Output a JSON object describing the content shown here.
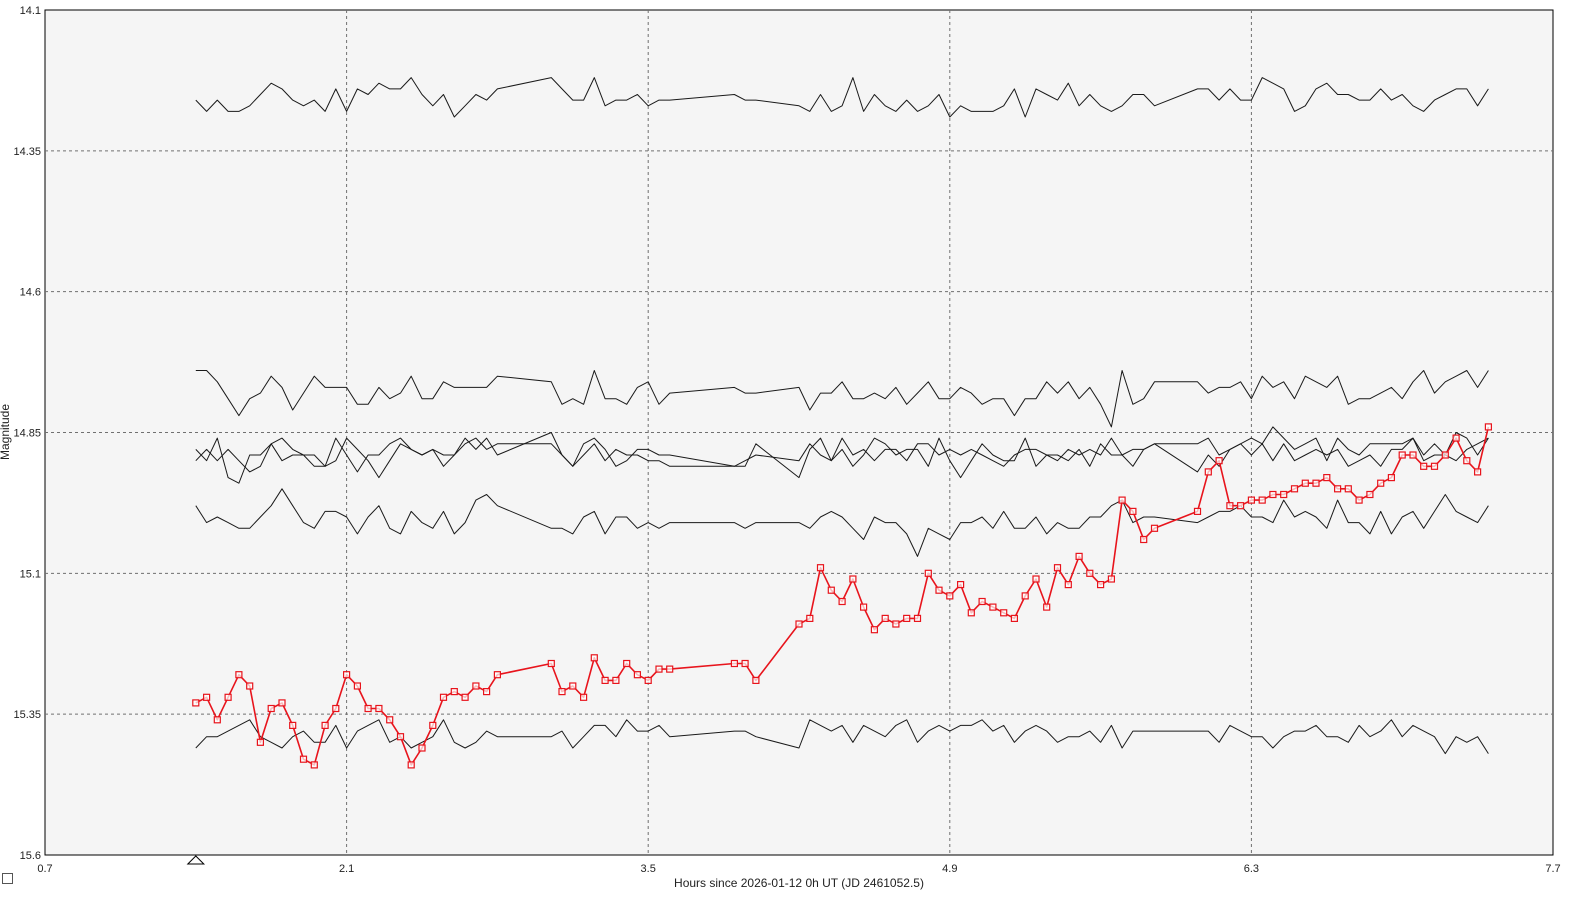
{
  "chart_data": {
    "type": "line",
    "title": "",
    "xlabel": "Hours since 2026-01-12 0h UT (JD 2461052.5)",
    "ylabel": "Magnitude",
    "xlim": [
      0.7,
      7.7
    ],
    "ylim": [
      14.1,
      15.6
    ],
    "y_inverted": true,
    "grid": true,
    "x_ticks": [
      "0.7",
      "2.1",
      "3.5",
      "4.9",
      "6.3",
      "7.7"
    ],
    "y_ticks": [
      "14.1",
      "14.35",
      "14.6",
      "14.85",
      "15.1",
      "15.35",
      "15.6"
    ],
    "x_marker": 1.4,
    "target_color": "#e8141c",
    "comp_color": "#1a1a1a",
    "x": [
      1.4,
      1.45,
      1.5,
      1.55,
      1.6,
      1.65,
      1.7,
      1.75,
      1.8,
      1.85,
      1.9,
      1.95,
      2.0,
      2.05,
      2.1,
      2.15,
      2.2,
      2.25,
      2.3,
      2.35,
      2.4,
      2.45,
      2.5,
      2.55,
      2.6,
      2.65,
      2.7,
      2.75,
      2.8,
      3.05,
      3.1,
      3.15,
      3.2,
      3.25,
      3.3,
      3.35,
      3.4,
      3.45,
      3.5,
      3.55,
      3.6,
      3.9,
      3.95,
      4.0,
      4.2,
      4.25,
      4.3,
      4.35,
      4.4,
      4.45,
      4.5,
      4.55,
      4.6,
      4.65,
      4.7,
      4.75,
      4.8,
      4.85,
      4.9,
      4.95,
      5.0,
      5.05,
      5.1,
      5.15,
      5.2,
      5.25,
      5.3,
      5.35,
      5.4,
      5.45,
      5.5,
      5.55,
      5.6,
      5.65,
      5.7,
      5.75,
      5.8,
      5.85,
      6.05,
      6.1,
      6.15,
      6.2,
      6.25,
      6.3,
      6.35,
      6.4,
      6.45,
      6.5,
      6.55,
      6.6,
      6.65,
      6.7,
      6.75,
      6.8,
      6.85,
      6.9,
      6.95,
      7.0,
      7.05,
      7.1,
      7.15,
      7.2,
      7.25,
      7.3,
      7.35,
      7.4
    ],
    "series": [
      {
        "role": "target",
        "y": [
          15.33,
          15.32,
          15.36,
          15.32,
          15.28,
          15.3,
          15.4,
          15.34,
          15.33,
          15.37,
          15.43,
          15.44,
          15.37,
          15.34,
          15.28,
          15.3,
          15.34,
          15.34,
          15.36,
          15.39,
          15.44,
          15.41,
          15.37,
          15.32,
          15.31,
          15.32,
          15.3,
          15.31,
          15.28,
          15.26,
          15.31,
          15.3,
          15.32,
          15.25,
          15.29,
          15.29,
          15.26,
          15.28,
          15.29,
          15.27,
          15.27,
          15.26,
          15.26,
          15.29,
          15.19,
          15.18,
          15.09,
          15.13,
          15.15,
          15.11,
          15.16,
          15.2,
          15.18,
          15.19,
          15.18,
          15.18,
          15.1,
          15.13,
          15.14,
          15.12,
          15.17,
          15.15,
          15.16,
          15.17,
          15.18,
          15.14,
          15.11,
          15.16,
          15.09,
          15.12,
          15.07,
          15.1,
          15.12,
          15.11,
          14.97,
          14.99,
          15.04,
          15.02,
          14.99,
          14.92,
          14.9,
          14.98,
          14.98,
          14.97,
          14.97,
          14.96,
          14.96,
          14.95,
          14.94,
          14.94,
          14.93,
          14.95,
          14.95,
          14.97,
          14.96,
          14.94,
          14.93,
          14.89,
          14.89,
          14.91,
          14.91,
          14.89,
          14.86,
          14.9,
          14.92,
          14.84
        ]
      },
      {
        "role": "comparison",
        "y": [
          14.26,
          14.28,
          14.26,
          14.28,
          14.28,
          14.27,
          14.25,
          14.23,
          14.24,
          14.26,
          14.27,
          14.26,
          14.28,
          14.24,
          14.28,
          14.24,
          14.25,
          14.23,
          14.24,
          14.24,
          14.22,
          14.25,
          14.27,
          14.25,
          14.29,
          14.27,
          14.25,
          14.26,
          14.24,
          14.22,
          14.24,
          14.26,
          14.26,
          14.22,
          14.27,
          14.26,
          14.26,
          14.25,
          14.27,
          14.26,
          14.26,
          14.25,
          14.26,
          14.26,
          14.27,
          14.28,
          14.25,
          14.28,
          14.27,
          14.22,
          14.28,
          14.25,
          14.27,
          14.28,
          14.26,
          14.28,
          14.27,
          14.25,
          14.29,
          14.27,
          14.28,
          14.28,
          14.28,
          14.27,
          14.24,
          14.29,
          14.24,
          14.25,
          14.26,
          14.23,
          14.27,
          14.25,
          14.27,
          14.28,
          14.27,
          14.25,
          14.25,
          14.27,
          14.24,
          14.24,
          14.26,
          14.24,
          14.26,
          14.26,
          14.22,
          14.23,
          14.24,
          14.28,
          14.27,
          14.24,
          14.23,
          14.25,
          14.25,
          14.26,
          14.26,
          14.24,
          14.26,
          14.25,
          14.27,
          14.28,
          14.26,
          14.25,
          14.24,
          14.24,
          14.27,
          14.24
        ]
      },
      {
        "role": "comparison",
        "y": [
          14.74,
          14.74,
          14.76,
          14.79,
          14.82,
          14.79,
          14.78,
          14.75,
          14.77,
          14.81,
          14.78,
          14.75,
          14.77,
          14.77,
          14.77,
          14.8,
          14.8,
          14.77,
          14.79,
          14.78,
          14.75,
          14.79,
          14.79,
          14.76,
          14.77,
          14.77,
          14.77,
          14.77,
          14.75,
          14.76,
          14.8,
          14.79,
          14.8,
          14.74,
          14.79,
          14.79,
          14.8,
          14.77,
          14.76,
          14.8,
          14.78,
          14.77,
          14.78,
          14.78,
          14.77,
          14.81,
          14.78,
          14.78,
          14.76,
          14.79,
          14.79,
          14.78,
          14.79,
          14.77,
          14.8,
          14.78,
          14.76,
          14.79,
          14.79,
          14.77,
          14.78,
          14.8,
          14.79,
          14.79,
          14.82,
          14.79,
          14.79,
          14.76,
          14.78,
          14.76,
          14.79,
          14.77,
          14.8,
          14.84,
          14.74,
          14.8,
          14.79,
          14.76,
          14.76,
          14.78,
          14.77,
          14.77,
          14.76,
          14.79,
          14.75,
          14.77,
          14.76,
          14.79,
          14.75,
          14.76,
          14.77,
          14.75,
          14.8,
          14.79,
          14.79,
          14.78,
          14.77,
          14.79,
          14.76,
          14.74,
          14.78,
          14.76,
          14.75,
          14.74,
          14.77,
          14.74
        ]
      },
      {
        "role": "comparison",
        "y": [
          14.9,
          14.88,
          14.9,
          14.88,
          14.9,
          14.92,
          14.91,
          14.87,
          14.86,
          14.88,
          14.89,
          14.91,
          14.91,
          14.9,
          14.86,
          14.88,
          14.9,
          14.93,
          14.9,
          14.87,
          14.88,
          14.89,
          14.88,
          14.91,
          14.89,
          14.87,
          14.86,
          14.88,
          14.87,
          14.87,
          14.89,
          14.91,
          14.89,
          14.87,
          14.9,
          14.88,
          14.89,
          14.89,
          14.9,
          14.9,
          14.91,
          14.91,
          14.9,
          14.89,
          14.9,
          14.87,
          14.89,
          14.9,
          14.86,
          14.89,
          14.88,
          14.9,
          14.88,
          14.88,
          14.9,
          14.87,
          14.87,
          14.89,
          14.88,
          14.89,
          14.88,
          14.89,
          14.9,
          14.91,
          14.89,
          14.88,
          14.88,
          14.89,
          14.89,
          14.9,
          14.88,
          14.91,
          14.87,
          14.89,
          14.89,
          14.88,
          14.88,
          14.87,
          14.87,
          14.86,
          14.89,
          14.88,
          14.87,
          14.86,
          14.87,
          14.84,
          14.86,
          14.88,
          14.87,
          14.86,
          14.9,
          14.86,
          14.88,
          14.89,
          14.87,
          14.87,
          14.87,
          14.87,
          14.86,
          14.89,
          14.87,
          14.89,
          14.85,
          14.86,
          14.89,
          14.86
        ]
      },
      {
        "role": "comparison",
        "y": [
          14.88,
          14.9,
          14.86,
          14.93,
          14.94,
          14.89,
          14.89,
          14.87,
          14.9,
          14.89,
          14.89,
          14.89,
          14.91,
          14.86,
          14.89,
          14.92,
          14.89,
          14.89,
          14.87,
          14.86,
          14.88,
          14.89,
          14.88,
          14.89,
          14.89,
          14.86,
          14.88,
          14.86,
          14.89,
          14.85,
          14.89,
          14.91,
          14.87,
          14.86,
          14.88,
          14.91,
          14.9,
          14.88,
          14.88,
          14.89,
          14.89,
          14.91,
          14.91,
          14.87,
          14.93,
          14.88,
          14.86,
          14.9,
          14.88,
          14.91,
          14.89,
          14.86,
          14.87,
          14.89,
          14.88,
          14.88,
          14.91,
          14.86,
          14.9,
          14.93,
          14.9,
          14.87,
          14.89,
          14.9,
          14.9,
          14.86,
          14.91,
          14.89,
          14.9,
          14.88,
          14.89,
          14.88,
          14.89,
          14.86,
          14.89,
          14.91,
          14.88,
          14.87,
          14.92,
          14.89,
          14.91,
          14.88,
          14.87,
          14.89,
          14.87,
          14.9,
          14.87,
          14.9,
          14.89,
          14.88,
          14.89,
          14.88,
          14.91,
          14.9,
          14.89,
          14.91,
          14.88,
          14.88,
          14.86,
          14.9,
          14.89,
          14.89,
          14.9,
          14.88,
          14.87,
          14.86
        ]
      },
      {
        "role": "comparison",
        "y": [
          14.98,
          15.01,
          15.0,
          15.01,
          15.02,
          15.02,
          15.0,
          14.98,
          14.95,
          14.98,
          15.01,
          15.02,
          14.99,
          14.99,
          15.0,
          15.03,
          15.0,
          14.98,
          15.02,
          15.03,
          14.99,
          15.01,
          15.02,
          14.99,
          15.03,
          15.01,
          14.97,
          14.96,
          14.98,
          15.02,
          15.02,
          15.03,
          15.0,
          14.99,
          15.03,
          15.0,
          15.0,
          15.02,
          15.01,
          15.02,
          15.01,
          15.01,
          15.02,
          15.01,
          15.01,
          15.02,
          15.0,
          14.99,
          15.0,
          15.02,
          15.04,
          15.0,
          15.01,
          15.01,
          15.03,
          15.07,
          15.02,
          15.03,
          15.04,
          15.01,
          15.01,
          15.0,
          15.02,
          14.99,
          15.02,
          15.02,
          15.0,
          15.03,
          15.01,
          15.02,
          15.02,
          15.0,
          15.0,
          14.98,
          14.97,
          15.01,
          15.0,
          15.0,
          15.01,
          15.0,
          14.99,
          14.99,
          14.98,
          15.0,
          15.0,
          15.01,
          14.97,
          15.0,
          14.99,
          15.0,
          15.02,
          14.97,
          15.01,
          15.01,
          15.03,
          14.99,
          15.03,
          15.0,
          14.99,
          15.02,
          14.99,
          14.96,
          14.99,
          15.0,
          15.01,
          14.98
        ]
      },
      {
        "role": "comparison",
        "y": [
          15.41,
          15.39,
          15.39,
          15.38,
          15.37,
          15.36,
          15.39,
          15.4,
          15.41,
          15.39,
          15.38,
          15.4,
          15.4,
          15.37,
          15.41,
          15.38,
          15.37,
          15.36,
          15.4,
          15.39,
          15.41,
          15.4,
          15.39,
          15.36,
          15.4,
          15.41,
          15.4,
          15.38,
          15.39,
          15.39,
          15.38,
          15.41,
          15.39,
          15.37,
          15.37,
          15.39,
          15.36,
          15.38,
          15.38,
          15.37,
          15.39,
          15.38,
          15.38,
          15.39,
          15.41,
          15.36,
          15.37,
          15.38,
          15.37,
          15.4,
          15.37,
          15.38,
          15.39,
          15.37,
          15.36,
          15.4,
          15.38,
          15.37,
          15.38,
          15.37,
          15.37,
          15.36,
          15.38,
          15.37,
          15.4,
          15.38,
          15.37,
          15.38,
          15.4,
          15.39,
          15.39,
          15.38,
          15.4,
          15.37,
          15.41,
          15.38,
          15.38,
          15.38,
          15.38,
          15.38,
          15.4,
          15.37,
          15.38,
          15.39,
          15.39,
          15.41,
          15.39,
          15.38,
          15.38,
          15.37,
          15.39,
          15.39,
          15.4,
          15.37,
          15.39,
          15.38,
          15.36,
          15.39,
          15.37,
          15.38,
          15.39,
          15.42,
          15.39,
          15.4,
          15.39,
          15.42
        ]
      }
    ]
  }
}
